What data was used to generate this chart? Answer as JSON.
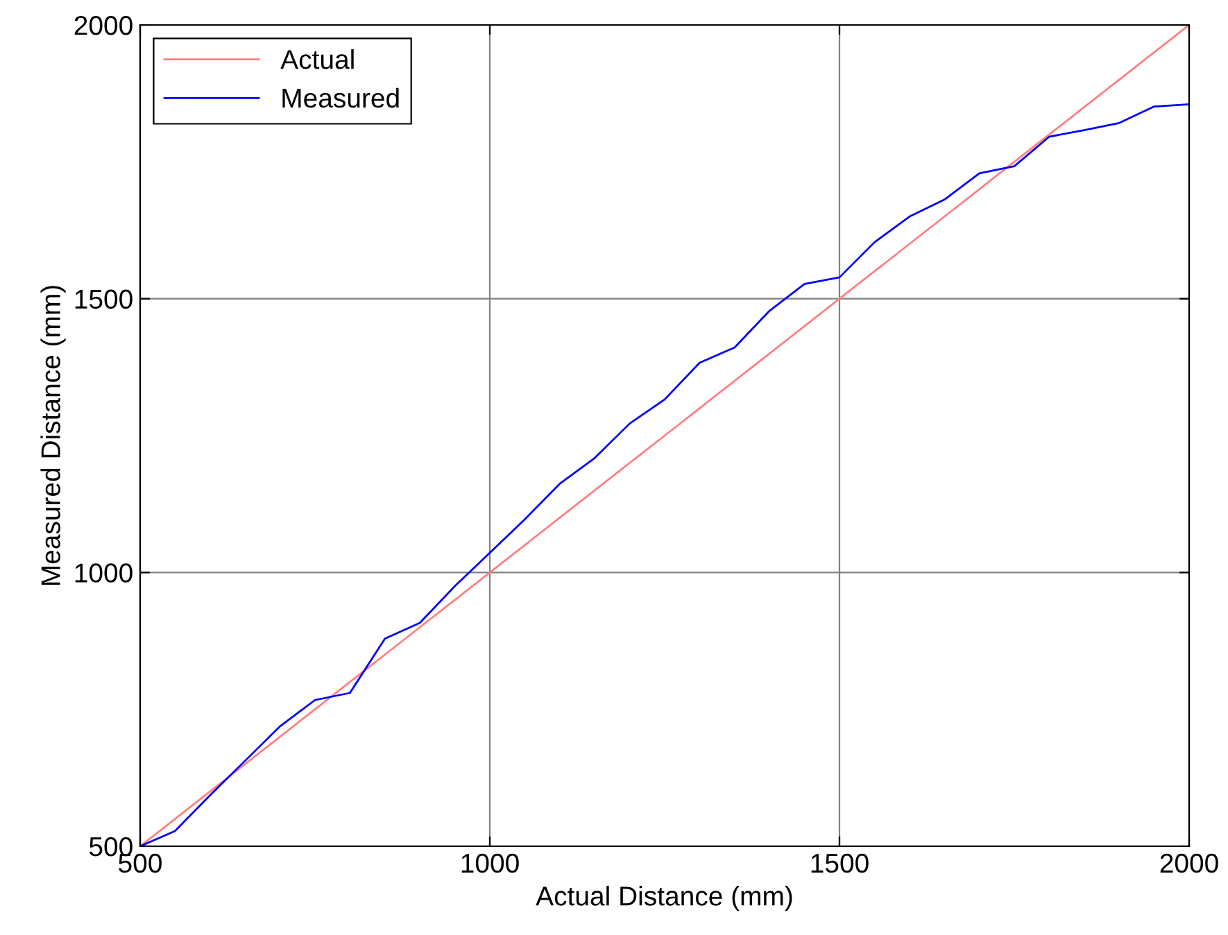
{
  "chart_data": {
    "type": "line",
    "xlabel": "Actual Distance (mm)",
    "ylabel": "Measured Distance (mm)",
    "x": [
      500,
      550,
      600,
      650,
      700,
      750,
      800,
      850,
      900,
      950,
      1000,
      1050,
      1100,
      1150,
      1200,
      1250,
      1300,
      1350,
      1400,
      1450,
      1500,
      1550,
      1600,
      1650,
      1700,
      1750,
      1800,
      1850,
      1900,
      1950,
      2000
    ],
    "series": [
      {
        "name": "Actual",
        "color": "#ff7f7f",
        "values": [
          500,
          550,
          600,
          650,
          700,
          750,
          800,
          850,
          900,
          950,
          1000,
          1050,
          1100,
          1150,
          1200,
          1250,
          1300,
          1350,
          1400,
          1450,
          1500,
          1550,
          1600,
          1650,
          1700,
          1750,
          1800,
          1850,
          1900,
          1950,
          2000
        ]
      },
      {
        "name": "Measured",
        "color": "#0000ff",
        "values": [
          500,
          528,
          593,
          656,
          719,
          767,
          780,
          879,
          908,
          975,
          1036,
          1097,
          1162,
          1209,
          1272,
          1316,
          1383,
          1411,
          1478,
          1527,
          1539,
          1603,
          1650,
          1681,
          1729,
          1742,
          1796,
          1808,
          1821,
          1851,
          1855
        ]
      }
    ],
    "xlim": [
      500,
      2000
    ],
    "ylim": [
      500,
      2000
    ],
    "xticks": [
      500,
      1000,
      1500,
      2000
    ],
    "yticks": [
      500,
      1000,
      1500,
      2000
    ],
    "grid": true,
    "legend": "top left",
    "marker": "none",
    "line_style": "solid"
  }
}
